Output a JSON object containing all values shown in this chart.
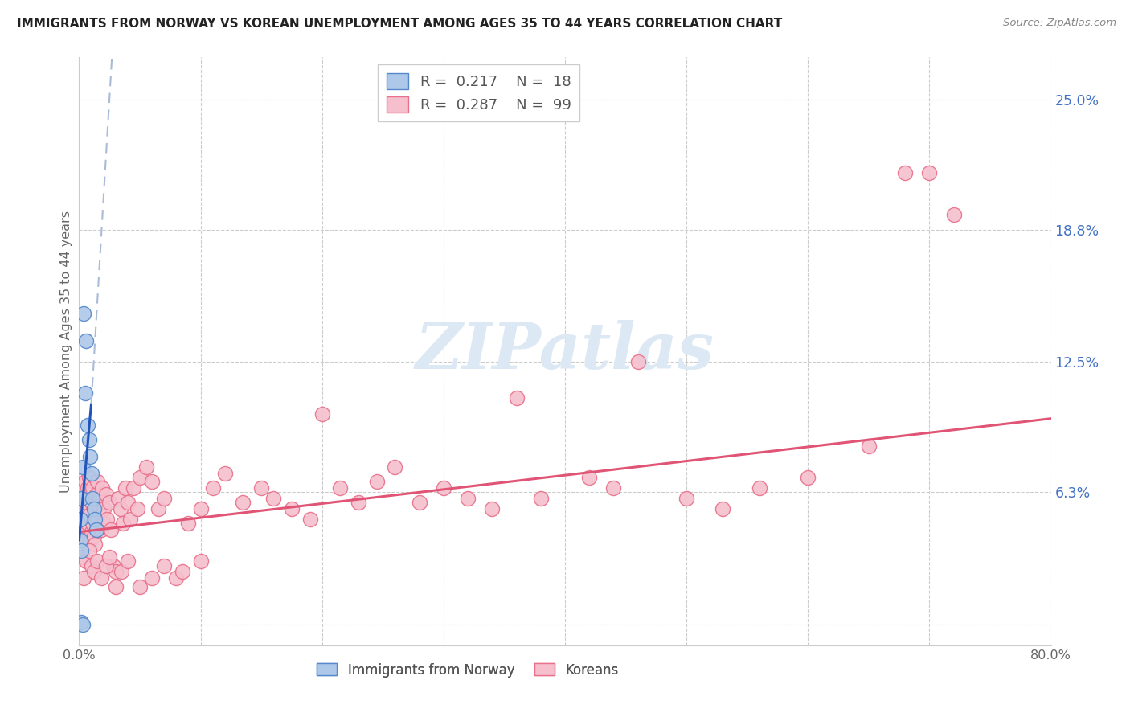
{
  "title": "IMMIGRANTS FROM NORWAY VS KOREAN UNEMPLOYMENT AMONG AGES 35 TO 44 YEARS CORRELATION CHART",
  "source": "Source: ZipAtlas.com",
  "ylabel": "Unemployment Among Ages 35 to 44 years",
  "xlim": [
    0.0,
    0.8
  ],
  "ylim": [
    -0.01,
    0.27
  ],
  "ytick_positions": [
    0.0,
    0.063,
    0.125,
    0.188,
    0.25
  ],
  "ytick_labels": [
    "",
    "6.3%",
    "12.5%",
    "18.8%",
    "25.0%"
  ],
  "norway_R": "0.217",
  "norway_N": "18",
  "korean_R": "0.287",
  "korean_N": "99",
  "norway_color": "#adc8e8",
  "norway_edge_color": "#5588cc",
  "korean_color": "#f5bfce",
  "korean_edge_color": "#e8708a",
  "norway_trend_color": "#2255bb",
  "korean_trend_color": "#e05575",
  "norway_trend_dashed_color": "#aabbd8",
  "watermark_color": "#dde8f5",
  "norway_scatter_x": [
    0.001,
    0.002,
    0.003,
    0.004,
    0.005,
    0.006,
    0.007,
    0.008,
    0.009,
    0.01,
    0.011,
    0.012,
    0.013,
    0.014,
    0.002,
    0.003,
    0.001,
    0.002
  ],
  "norway_scatter_y": [
    0.05,
    0.06,
    0.075,
    0.148,
    0.11,
    0.135,
    0.095,
    0.088,
    0.08,
    0.072,
    0.06,
    0.055,
    0.05,
    0.045,
    0.001,
    0.0,
    0.04,
    0.035
  ],
  "korean_scatter_x": [
    0.003,
    0.004,
    0.005,
    0.005,
    0.006,
    0.006,
    0.007,
    0.007,
    0.008,
    0.008,
    0.009,
    0.009,
    0.01,
    0.01,
    0.011,
    0.011,
    0.012,
    0.012,
    0.013,
    0.013,
    0.014,
    0.014,
    0.015,
    0.015,
    0.016,
    0.017,
    0.018,
    0.019,
    0.02,
    0.02,
    0.022,
    0.023,
    0.025,
    0.026,
    0.028,
    0.03,
    0.032,
    0.034,
    0.036,
    0.038,
    0.04,
    0.042,
    0.045,
    0.048,
    0.05,
    0.055,
    0.06,
    0.065,
    0.07,
    0.08,
    0.09,
    0.1,
    0.11,
    0.12,
    0.135,
    0.15,
    0.16,
    0.175,
    0.19,
    0.2,
    0.215,
    0.23,
    0.245,
    0.26,
    0.28,
    0.3,
    0.32,
    0.34,
    0.36,
    0.38,
    0.42,
    0.44,
    0.46,
    0.5,
    0.53,
    0.56,
    0.6,
    0.65,
    0.68,
    0.7,
    0.72,
    0.003,
    0.004,
    0.006,
    0.008,
    0.01,
    0.012,
    0.015,
    0.018,
    0.022,
    0.025,
    0.03,
    0.035,
    0.04,
    0.05,
    0.06,
    0.07,
    0.085,
    0.1
  ],
  "korean_scatter_y": [
    0.055,
    0.05,
    0.068,
    0.042,
    0.058,
    0.045,
    0.065,
    0.048,
    0.07,
    0.052,
    0.062,
    0.04,
    0.058,
    0.044,
    0.065,
    0.048,
    0.06,
    0.042,
    0.055,
    0.038,
    0.062,
    0.045,
    0.068,
    0.05,
    0.055,
    0.06,
    0.045,
    0.065,
    0.048,
    0.055,
    0.062,
    0.05,
    0.058,
    0.045,
    0.028,
    0.025,
    0.06,
    0.055,
    0.048,
    0.065,
    0.058,
    0.05,
    0.065,
    0.055,
    0.07,
    0.075,
    0.068,
    0.055,
    0.06,
    0.022,
    0.048,
    0.055,
    0.065,
    0.072,
    0.058,
    0.065,
    0.06,
    0.055,
    0.05,
    0.1,
    0.065,
    0.058,
    0.068,
    0.075,
    0.058,
    0.065,
    0.06,
    0.055,
    0.108,
    0.06,
    0.07,
    0.065,
    0.125,
    0.06,
    0.055,
    0.065,
    0.07,
    0.085,
    0.215,
    0.215,
    0.195,
    0.032,
    0.022,
    0.03,
    0.035,
    0.028,
    0.025,
    0.03,
    0.022,
    0.028,
    0.032,
    0.018,
    0.025,
    0.03,
    0.018,
    0.022,
    0.028,
    0.025,
    0.03
  ],
  "korean_trend_x0": 0.0,
  "korean_trend_x1": 0.8,
  "korean_trend_y0": 0.044,
  "korean_trend_y1": 0.098,
  "norway_trend_solid_x0": 0.0,
  "norway_trend_solid_x1": 0.01,
  "norway_trend_solid_y0": 0.04,
  "norway_trend_solid_y1": 0.105,
  "norway_trend_dash_x0": 0.01,
  "norway_trend_dash_x1": 0.027,
  "norway_trend_dash_y0": 0.105,
  "norway_trend_dash_y1": 0.27
}
